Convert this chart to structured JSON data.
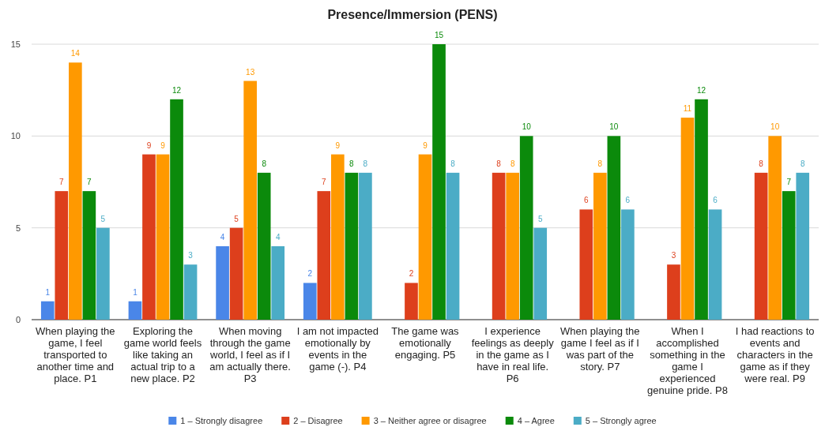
{
  "chart_data": {
    "type": "bar",
    "title": "Presence/Immersion (PENS)",
    "categories": [
      "When playing the game, I feel transported to another time and place. P1",
      "Exploring the game world feels like taking an actual trip to a new place. P2",
      "When moving through the game world, I feel as if I am actually there. P3",
      "I am not impacted emotionally by events in the game (-). P4",
      "The game was emotionally engaging. P5",
      "I experience feelings as deeply in the game as I have in real life. P6",
      "When playing the game I feel as if I was part of the story. P7",
      "When I accomplished something in the game I experienced genuine pride. P8",
      "I had reactions to events and characters in the game as if they were real. P9"
    ],
    "series": [
      {
        "name": "1 – Strongly disagree",
        "color": "#4a86e8",
        "values": [
          1,
          1,
          4,
          2,
          null,
          null,
          null,
          null,
          null
        ]
      },
      {
        "name": "2 – Disagree",
        "color": "#dd3f1c",
        "values": [
          7,
          9,
          5,
          7,
          2,
          8,
          6,
          3,
          8
        ]
      },
      {
        "name": "3 – Neither agree or disagree",
        "color": "#ff9900",
        "values": [
          14,
          9,
          13,
          9,
          9,
          8,
          8,
          11,
          10
        ]
      },
      {
        "name": "4 – Agree",
        "color": "#0b8a0b",
        "values": [
          7,
          12,
          8,
          8,
          15,
          10,
          10,
          12,
          7
        ]
      },
      {
        "name": "5 – Strongly agree",
        "color": "#4bacc6",
        "values": [
          5,
          3,
          4,
          8,
          8,
          5,
          6,
          6,
          8
        ]
      }
    ],
    "ylim": [
      0,
      15
    ],
    "yticks": [
      0,
      5,
      10,
      15
    ],
    "grid": "y",
    "legend": "bottom",
    "data_labels": true
  }
}
